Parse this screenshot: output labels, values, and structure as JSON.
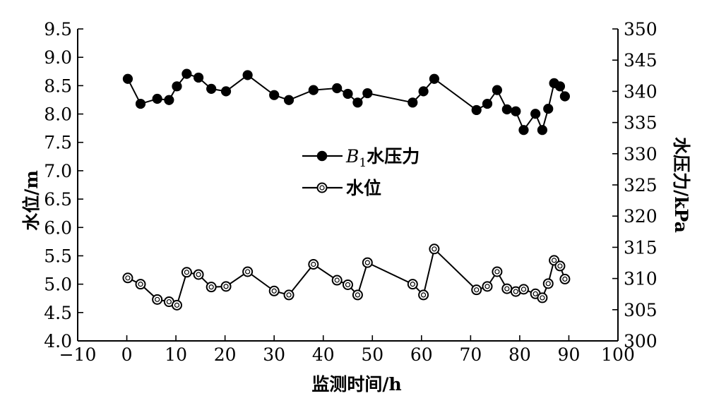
{
  "chart_data": {
    "type": "line",
    "xlabel": "监测时间/h",
    "ylabel_left": "水位/m",
    "ylabel_right": "水压力/kPa",
    "xlim": [
      -10,
      100
    ],
    "ylim_left": [
      4.0,
      9.5
    ],
    "ylim_right": [
      300,
      350
    ],
    "x_ticks": [
      "−10",
      "0",
      "10",
      "20",
      "30",
      "40",
      "50",
      "60",
      "70",
      "80",
      "90",
      "100"
    ],
    "x_tick_values": [
      -10,
      0,
      10,
      20,
      30,
      40,
      50,
      60,
      70,
      80,
      90,
      100
    ],
    "y_left_ticks": [
      "4.0",
      "4.5",
      "5.0",
      "5.5",
      "6.0",
      "6.5",
      "7.0",
      "7.5",
      "8.0",
      "8.5",
      "9.0",
      "9.5"
    ],
    "y_left_tick_values": [
      4.0,
      4.5,
      5.0,
      5.5,
      6.0,
      6.5,
      7.0,
      7.5,
      8.0,
      8.5,
      9.0,
      9.5
    ],
    "y_right_ticks": [
      "300",
      "305",
      "310",
      "315",
      "320",
      "325",
      "330",
      "335",
      "340",
      "345",
      "350"
    ],
    "y_right_tick_values": [
      300,
      305,
      310,
      315,
      320,
      325,
      330,
      335,
      340,
      345,
      350
    ],
    "legend_placement": "center",
    "grid": false,
    "series": [
      {
        "name_prefix": "B",
        "name_subscript": "1",
        "name_suffix": "水压力",
        "axis": "right",
        "marker": "filled-circle",
        "points": [
          [
            0.2,
            342.0
          ],
          [
            2.8,
            338.0
          ],
          [
            6.2,
            338.8
          ],
          [
            8.6,
            338.6
          ],
          [
            10.2,
            340.8
          ],
          [
            12.2,
            342.8
          ],
          [
            14.6,
            342.2
          ],
          [
            17.2,
            340.4
          ],
          [
            20.2,
            340.0
          ],
          [
            24.6,
            342.6
          ],
          [
            30.0,
            339.4
          ],
          [
            33.0,
            338.6
          ],
          [
            38.0,
            340.2
          ],
          [
            42.8,
            340.5
          ],
          [
            45.0,
            339.6
          ],
          [
            47.0,
            338.2
          ],
          [
            49.0,
            339.7
          ],
          [
            58.2,
            338.2
          ],
          [
            60.4,
            340.0
          ],
          [
            62.6,
            342.0
          ],
          [
            71.2,
            337.0
          ],
          [
            73.4,
            338.0
          ],
          [
            75.4,
            340.2
          ],
          [
            77.4,
            337.1
          ],
          [
            79.2,
            336.8
          ],
          [
            80.8,
            333.8
          ],
          [
            83.2,
            336.4
          ],
          [
            84.6,
            333.8
          ],
          [
            85.8,
            337.2
          ],
          [
            87.0,
            341.3
          ],
          [
            88.2,
            340.8
          ],
          [
            89.2,
            339.2
          ]
        ]
      },
      {
        "name": "水位",
        "axis": "left",
        "marker": "open-circle",
        "points": [
          [
            0.2,
            5.11
          ],
          [
            2.8,
            5.0
          ],
          [
            6.2,
            4.73
          ],
          [
            8.6,
            4.69
          ],
          [
            10.2,
            4.63
          ],
          [
            12.2,
            5.21
          ],
          [
            14.6,
            5.17
          ],
          [
            17.2,
            4.95
          ],
          [
            20.2,
            4.96
          ],
          [
            24.6,
            5.22
          ],
          [
            30.0,
            4.88
          ],
          [
            33.0,
            4.81
          ],
          [
            38.0,
            5.35
          ],
          [
            42.8,
            5.07
          ],
          [
            45.0,
            4.99
          ],
          [
            47.0,
            4.81
          ],
          [
            49.0,
            5.38
          ],
          [
            58.2,
            5.0
          ],
          [
            60.4,
            4.81
          ],
          [
            62.6,
            5.62
          ],
          [
            71.2,
            4.9
          ],
          [
            73.4,
            4.96
          ],
          [
            75.4,
            5.22
          ],
          [
            77.4,
            4.92
          ],
          [
            79.2,
            4.87
          ],
          [
            80.8,
            4.91
          ],
          [
            83.2,
            4.83
          ],
          [
            84.6,
            4.76
          ],
          [
            85.8,
            5.01
          ],
          [
            87.0,
            5.42
          ],
          [
            88.2,
            5.32
          ],
          [
            89.2,
            5.09
          ]
        ]
      }
    ]
  }
}
